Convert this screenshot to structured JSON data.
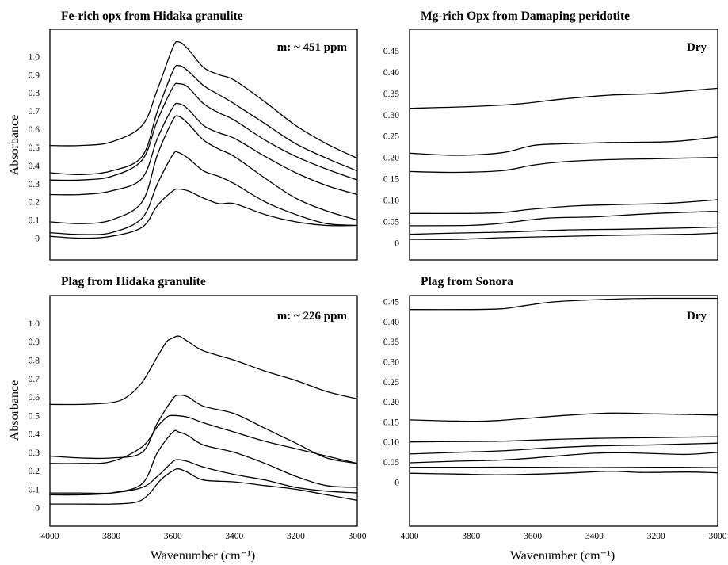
{
  "figure": {
    "ylabel": "Absorbance",
    "xlabel": "Wavenumber (cm⁻¹)"
  },
  "chart_data": [
    {
      "type": "line",
      "title": "Fe-rich opx from Hidaka granulite",
      "annotation": "m: ~ 451 ppm",
      "ylabel": "Absorbance",
      "xlabel": "",
      "xlim": [
        4000,
        3000
      ],
      "ylim": [
        -0.12,
        1.15
      ],
      "yticks": [
        "0",
        "0.1",
        "0.2",
        "0.3",
        "0.4",
        "0.5",
        "0.6",
        "0.7",
        "0.8",
        "0.9",
        "1.0"
      ],
      "xticks": [],
      "series": [
        {
          "x": [
            4000,
            3900,
            3800,
            3700,
            3650,
            3600,
            3580,
            3550,
            3500,
            3450,
            3400,
            3300,
            3200,
            3100,
            3000
          ],
          "y": [
            0.51,
            0.51,
            0.53,
            0.62,
            0.82,
            1.05,
            1.08,
            1.04,
            0.94,
            0.9,
            0.87,
            0.75,
            0.62,
            0.52,
            0.44
          ]
        },
        {
          "x": [
            4000,
            3900,
            3800,
            3700,
            3650,
            3600,
            3580,
            3550,
            3500,
            3450,
            3400,
            3300,
            3200,
            3100,
            3000
          ],
          "y": [
            0.36,
            0.35,
            0.37,
            0.45,
            0.7,
            0.92,
            0.95,
            0.92,
            0.84,
            0.79,
            0.74,
            0.63,
            0.52,
            0.44,
            0.37
          ]
        },
        {
          "x": [
            4000,
            3900,
            3800,
            3700,
            3650,
            3600,
            3580,
            3550,
            3500,
            3450,
            3400,
            3300,
            3200,
            3100,
            3000
          ],
          "y": [
            0.32,
            0.32,
            0.34,
            0.43,
            0.65,
            0.83,
            0.85,
            0.83,
            0.74,
            0.69,
            0.65,
            0.54,
            0.45,
            0.38,
            0.32
          ]
        },
        {
          "x": [
            4000,
            3900,
            3800,
            3700,
            3650,
            3600,
            3580,
            3550,
            3500,
            3450,
            3400,
            3300,
            3200,
            3100,
            3000
          ],
          "y": [
            0.24,
            0.24,
            0.26,
            0.33,
            0.55,
            0.72,
            0.74,
            0.71,
            0.62,
            0.58,
            0.55,
            0.45,
            0.36,
            0.29,
            0.24
          ]
        },
        {
          "x": [
            4000,
            3900,
            3800,
            3700,
            3650,
            3600,
            3580,
            3550,
            3500,
            3450,
            3400,
            3300,
            3200,
            3100,
            3000
          ],
          "y": [
            0.09,
            0.08,
            0.1,
            0.2,
            0.46,
            0.65,
            0.67,
            0.63,
            0.54,
            0.49,
            0.45,
            0.33,
            0.22,
            0.15,
            0.1
          ]
        },
        {
          "x": [
            4000,
            3900,
            3800,
            3700,
            3650,
            3600,
            3580,
            3550,
            3500,
            3450,
            3400,
            3300,
            3200,
            3100,
            3000
          ],
          "y": [
            0.03,
            0.02,
            0.03,
            0.11,
            0.3,
            0.46,
            0.47,
            0.44,
            0.37,
            0.34,
            0.3,
            0.2,
            0.13,
            0.08,
            0.07
          ]
        },
        {
          "x": [
            4000,
            3900,
            3800,
            3700,
            3650,
            3600,
            3580,
            3550,
            3500,
            3450,
            3400,
            3300,
            3200,
            3100,
            3000
          ],
          "y": [
            0.01,
            0.0,
            0.01,
            0.06,
            0.18,
            0.26,
            0.27,
            0.26,
            0.22,
            0.19,
            0.19,
            0.13,
            0.09,
            0.07,
            0.07
          ]
        }
      ]
    },
    {
      "type": "line",
      "title": "Mg-rich Opx from Damaping peridotite",
      "annotation": "Dry",
      "ylabel": "",
      "xlabel": "",
      "xlim": [
        4000,
        3000
      ],
      "ylim": [
        -0.04,
        0.5
      ],
      "yticks": [
        "0",
        "0.05",
        "0.10",
        "0.15",
        "0.20",
        "0.25",
        "0.30",
        "0.35",
        "0.40",
        "0.45"
      ],
      "xticks": [],
      "series": [
        {
          "x": [
            4000,
            3800,
            3650,
            3500,
            3350,
            3200,
            3000
          ],
          "y": [
            0.315,
            0.319,
            0.325,
            0.337,
            0.346,
            0.35,
            0.362
          ]
        },
        {
          "x": [
            4000,
            3850,
            3700,
            3600,
            3500,
            3350,
            3150,
            3000
          ],
          "y": [
            0.21,
            0.205,
            0.211,
            0.228,
            0.232,
            0.235,
            0.237,
            0.248
          ]
        },
        {
          "x": [
            4000,
            3850,
            3700,
            3600,
            3500,
            3350,
            3200,
            3000
          ],
          "y": [
            0.167,
            0.165,
            0.169,
            0.182,
            0.19,
            0.195,
            0.197,
            0.2
          ]
        },
        {
          "x": [
            4000,
            3800,
            3700,
            3600,
            3450,
            3300,
            3150,
            3000
          ],
          "y": [
            0.069,
            0.069,
            0.071,
            0.079,
            0.087,
            0.09,
            0.093,
            0.101
          ]
        },
        {
          "x": [
            4000,
            3800,
            3700,
            3550,
            3400,
            3200,
            3000
          ],
          "y": [
            0.04,
            0.041,
            0.046,
            0.058,
            0.061,
            0.069,
            0.074
          ]
        },
        {
          "x": [
            4000,
            3850,
            3700,
            3500,
            3300,
            3100,
            3000
          ],
          "y": [
            0.02,
            0.023,
            0.025,
            0.03,
            0.032,
            0.035,
            0.037
          ]
        },
        {
          "x": [
            4000,
            3850,
            3700,
            3500,
            3300,
            3100,
            3000
          ],
          "y": [
            0.008,
            0.008,
            0.012,
            0.015,
            0.018,
            0.02,
            0.023
          ]
        }
      ]
    },
    {
      "type": "line",
      "title": "Plag from Hidaka granulite",
      "annotation": "m: ~ 226 ppm",
      "ylabel": "Absorbance",
      "xlabel": "Wavenumber (cm⁻¹)",
      "xlim": [
        4000,
        3000
      ],
      "ylim": [
        -0.1,
        1.15
      ],
      "yticks": [
        "0",
        "0.1",
        "0.2",
        "0.3",
        "0.4",
        "0.5",
        "0.6",
        "0.7",
        "0.8",
        "0.9",
        "1.0"
      ],
      "xticks": [
        "4000",
        "3800",
        "3600",
        "3400",
        "3200",
        "3000"
      ],
      "series": [
        {
          "x": [
            4000,
            3900,
            3800,
            3750,
            3700,
            3650,
            3620,
            3600,
            3580,
            3550,
            3500,
            3400,
            3300,
            3200,
            3100,
            3000
          ],
          "y": [
            0.56,
            0.56,
            0.57,
            0.6,
            0.68,
            0.82,
            0.9,
            0.92,
            0.93,
            0.9,
            0.85,
            0.8,
            0.74,
            0.69,
            0.63,
            0.59
          ]
        },
        {
          "x": [
            4000,
            3900,
            3800,
            3700,
            3650,
            3600,
            3580,
            3550,
            3500,
            3400,
            3300,
            3200,
            3100,
            3000
          ],
          "y": [
            0.28,
            0.27,
            0.27,
            0.3,
            0.46,
            0.59,
            0.61,
            0.6,
            0.55,
            0.51,
            0.43,
            0.35,
            0.27,
            0.24
          ]
        },
        {
          "x": [
            4000,
            3900,
            3800,
            3700,
            3650,
            3620,
            3600,
            3550,
            3500,
            3400,
            3300,
            3200,
            3100,
            3000
          ],
          "y": [
            0.24,
            0.24,
            0.25,
            0.33,
            0.44,
            0.49,
            0.5,
            0.49,
            0.46,
            0.41,
            0.36,
            0.32,
            0.28,
            0.24
          ]
        },
        {
          "x": [
            4000,
            3900,
            3800,
            3700,
            3650,
            3600,
            3580,
            3550,
            3500,
            3400,
            3300,
            3200,
            3100,
            3000
          ],
          "y": [
            0.07,
            0.07,
            0.08,
            0.13,
            0.3,
            0.41,
            0.41,
            0.39,
            0.34,
            0.3,
            0.24,
            0.17,
            0.12,
            0.11
          ]
        },
        {
          "x": [
            4000,
            3900,
            3800,
            3700,
            3650,
            3600,
            3580,
            3550,
            3500,
            3400,
            3300,
            3200,
            3100,
            3000
          ],
          "y": [
            0.08,
            0.08,
            0.08,
            0.11,
            0.17,
            0.25,
            0.26,
            0.25,
            0.22,
            0.18,
            0.15,
            0.11,
            0.09,
            0.08
          ]
        },
        {
          "x": [
            4000,
            3900,
            3800,
            3720,
            3680,
            3640,
            3600,
            3580,
            3550,
            3500,
            3400,
            3300,
            3200,
            3100,
            3000
          ],
          "y": [
            0.02,
            0.02,
            0.02,
            0.03,
            0.07,
            0.15,
            0.2,
            0.21,
            0.19,
            0.15,
            0.14,
            0.12,
            0.1,
            0.07,
            0.04
          ]
        }
      ]
    },
    {
      "type": "line",
      "title": "Plag from Sonora",
      "annotation": "Dry",
      "ylabel": "",
      "xlabel": "Wavenumber (cm⁻¹)",
      "xlim": [
        4000,
        3000
      ],
      "ylim": [
        -0.11,
        0.465
      ],
      "yticks": [
        "0",
        "0.05",
        "0.10",
        "0.15",
        "0.20",
        "0.25",
        "0.30",
        "0.35",
        "0.40",
        "0.45"
      ],
      "xticks": [
        "4000",
        "3800",
        "3600",
        "3400",
        "3200",
        "3000"
      ],
      "series": [
        {
          "x": [
            4000,
            3800,
            3700,
            3650,
            3550,
            3450,
            3300,
            3200,
            3000
          ],
          "y": [
            0.43,
            0.43,
            0.432,
            0.437,
            0.448,
            0.453,
            0.457,
            0.458,
            0.458
          ]
        },
        {
          "x": [
            4000,
            3850,
            3750,
            3650,
            3500,
            3350,
            3200,
            3000
          ],
          "y": [
            0.155,
            0.152,
            0.152,
            0.157,
            0.166,
            0.172,
            0.17,
            0.167
          ]
        },
        {
          "x": [
            4000,
            3850,
            3700,
            3550,
            3400,
            3200,
            3000
          ],
          "y": [
            0.1,
            0.101,
            0.102,
            0.106,
            0.109,
            0.111,
            0.113
          ]
        },
        {
          "x": [
            4000,
            3850,
            3700,
            3550,
            3400,
            3200,
            3000
          ],
          "y": [
            0.07,
            0.074,
            0.078,
            0.085,
            0.09,
            0.093,
            0.097
          ]
        },
        {
          "x": [
            4000,
            3850,
            3700,
            3550,
            3400,
            3300,
            3200,
            3100,
            3000
          ],
          "y": [
            0.048,
            0.052,
            0.055,
            0.063,
            0.072,
            0.073,
            0.071,
            0.069,
            0.074
          ]
        },
        {
          "x": [
            4000,
            3800,
            3600,
            3400,
            3200,
            3000
          ],
          "y": [
            0.037,
            0.037,
            0.037,
            0.036,
            0.037,
            0.036
          ]
        },
        {
          "x": [
            4000,
            3850,
            3700,
            3500,
            3350,
            3250,
            3100,
            3000
          ],
          "y": [
            0.022,
            0.02,
            0.018,
            0.022,
            0.027,
            0.024,
            0.025,
            0.023
          ]
        }
      ]
    }
  ]
}
